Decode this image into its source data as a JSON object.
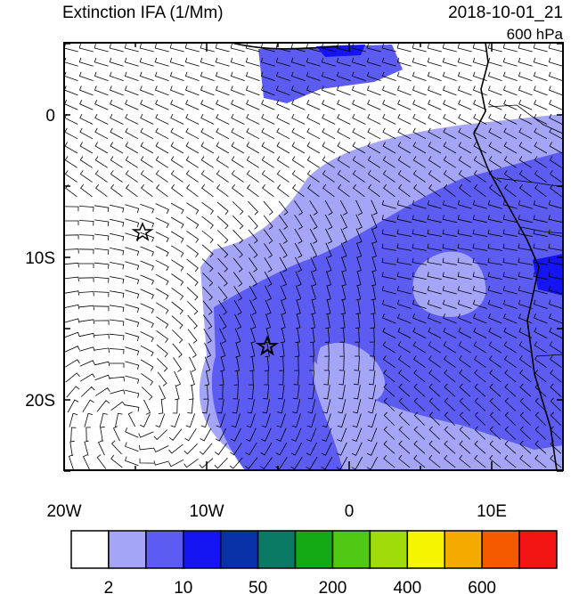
{
  "header": {
    "title": "Extinction IFA (1/Mm)",
    "time": "2018-10-01_21",
    "level": "600 hPa"
  },
  "axes": {
    "lat_labels": [
      "0",
      "10S",
      "20S"
    ],
    "lon_labels": [
      "20W",
      "10W",
      "0",
      "10E"
    ]
  },
  "colorbar": {
    "colors": [
      "#ffffff",
      "#a5a5f7",
      "#5c5cf2",
      "#1414f5",
      "#0a32a8",
      "#0a7a64",
      "#14aa14",
      "#50c814",
      "#a0dc0a",
      "#f5f500",
      "#f5aa00",
      "#f55a00",
      "#f51414"
    ],
    "labels": [
      "2",
      "10",
      "50",
      "200",
      "400",
      "600"
    ]
  }
}
